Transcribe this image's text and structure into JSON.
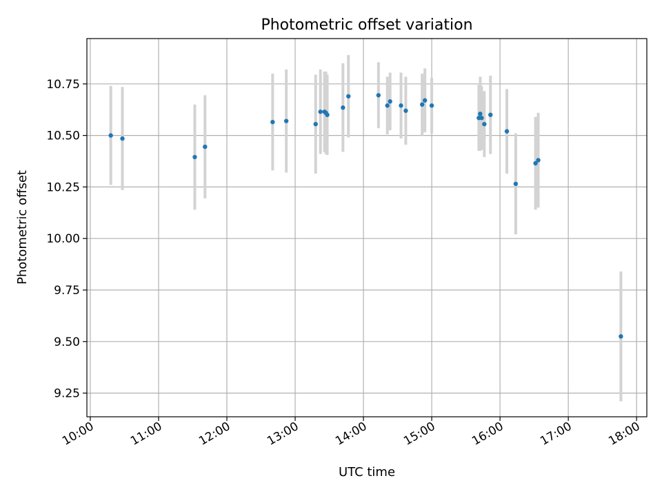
{
  "chart_data": {
    "type": "scatter",
    "title": "Photometric offset variation",
    "xlabel": "UTC time",
    "ylabel": "Photometric offset",
    "xlim_hours": [
      9.95,
      18.15
    ],
    "ylim": [
      9.135,
      10.97
    ],
    "x_ticks": [
      {
        "value": 10,
        "label": "10:00"
      },
      {
        "value": 11,
        "label": "11:00"
      },
      {
        "value": 12,
        "label": "12:00"
      },
      {
        "value": 13,
        "label": "13:00"
      },
      {
        "value": 14,
        "label": "14:00"
      },
      {
        "value": 15,
        "label": "15:00"
      },
      {
        "value": 16,
        "label": "16:00"
      },
      {
        "value": 17,
        "label": "17:00"
      },
      {
        "value": 18,
        "label": "18:00"
      }
    ],
    "y_ticks": [
      {
        "value": 9.25,
        "label": "9.25"
      },
      {
        "value": 9.5,
        "label": "9.50"
      },
      {
        "value": 9.75,
        "label": "9.75"
      },
      {
        "value": 10.0,
        "label": "10.00"
      },
      {
        "value": 10.25,
        "label": "10.25"
      },
      {
        "value": 10.5,
        "label": "10.50"
      },
      {
        "value": 10.75,
        "label": "10.75"
      }
    ],
    "grid": true,
    "point_color": "#1f77b4",
    "errorbar_color": "#d3d3d3",
    "points": [
      {
        "time": "10:18",
        "x": 10.3,
        "y": 10.5,
        "err": 0.24
      },
      {
        "time": "10:28",
        "x": 10.47,
        "y": 10.485,
        "err": 0.25
      },
      {
        "time": "11:32",
        "x": 11.53,
        "y": 10.395,
        "err": 0.255
      },
      {
        "time": "11:41",
        "x": 11.68,
        "y": 10.445,
        "err": 0.25
      },
      {
        "time": "12:40",
        "x": 12.67,
        "y": 10.565,
        "err": 0.235
      },
      {
        "time": "12:52",
        "x": 12.87,
        "y": 10.57,
        "err": 0.25
      },
      {
        "time": "13:18",
        "x": 13.3,
        "y": 10.555,
        "err": 0.24
      },
      {
        "time": "13:22",
        "x": 13.37,
        "y": 10.615,
        "err": 0.205
      },
      {
        "time": "13:26",
        "x": 13.43,
        "y": 10.615,
        "err": 0.195
      },
      {
        "time": "13:27",
        "x": 13.45,
        "y": 10.61,
        "err": 0.2
      },
      {
        "time": "13:28",
        "x": 13.47,
        "y": 10.6,
        "err": 0.195
      },
      {
        "time": "13:42",
        "x": 13.7,
        "y": 10.635,
        "err": 0.215
      },
      {
        "time": "13:47",
        "x": 13.78,
        "y": 10.69,
        "err": 0.2
      },
      {
        "time": "14:13",
        "x": 14.22,
        "y": 10.695,
        "err": 0.16
      },
      {
        "time": "14:21",
        "x": 14.35,
        "y": 10.645,
        "err": 0.14
      },
      {
        "time": "14:23",
        "x": 14.39,
        "y": 10.665,
        "err": 0.14
      },
      {
        "time": "14:33",
        "x": 14.55,
        "y": 10.645,
        "err": 0.16
      },
      {
        "time": "14:37",
        "x": 14.62,
        "y": 10.62,
        "err": 0.165
      },
      {
        "time": "14:51",
        "x": 14.86,
        "y": 10.65,
        "err": 0.15
      },
      {
        "time": "14:54",
        "x": 14.9,
        "y": 10.67,
        "err": 0.155
      },
      {
        "time": "15:00",
        "x": 15.0,
        "y": 10.645,
        "err": 0.135
      },
      {
        "time": "15:41",
        "x": 15.69,
        "y": 10.585,
        "err": 0.16
      },
      {
        "time": "15:43",
        "x": 15.71,
        "y": 10.605,
        "err": 0.18
      },
      {
        "time": "15:44",
        "x": 15.73,
        "y": 10.585,
        "err": 0.155
      },
      {
        "time": "15:46",
        "x": 15.77,
        "y": 10.555,
        "err": 0.16
      },
      {
        "time": "15:51",
        "x": 15.86,
        "y": 10.6,
        "err": 0.19
      },
      {
        "time": "16:06",
        "x": 16.1,
        "y": 10.52,
        "err": 0.205
      },
      {
        "time": "16:14",
        "x": 16.23,
        "y": 10.265,
        "err": 0.245
      },
      {
        "time": "16:31",
        "x": 16.52,
        "y": 10.365,
        "err": 0.225
      },
      {
        "time": "16:34",
        "x": 16.56,
        "y": 10.38,
        "err": 0.23
      },
      {
        "time": "17:46",
        "x": 17.77,
        "y": 9.525,
        "err": 0.315
      }
    ]
  }
}
